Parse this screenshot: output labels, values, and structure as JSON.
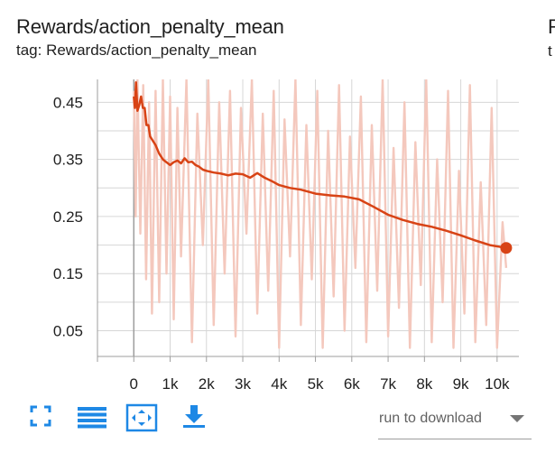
{
  "card": {
    "title": "Rewards/action_penalty_mean",
    "subtitle": "tag: Rewards/action_penalty_mean",
    "next_title_fragment": "R",
    "next_subtitle_fragment": "t"
  },
  "chart_data": {
    "type": "line",
    "xlim": [
      -1000,
      10600
    ],
    "ylim": [
      0.005,
      0.49
    ],
    "x_ticks": [
      0,
      1000,
      2000,
      3000,
      4000,
      5000,
      6000,
      7000,
      8000,
      9000,
      10000
    ],
    "x_tick_labels": [
      "0",
      "1k",
      "2k",
      "3k",
      "4k",
      "5k",
      "6k",
      "7k",
      "8k",
      "9k",
      "10k"
    ],
    "y_ticks": [
      0.05,
      0.15,
      0.25,
      0.35,
      0.45
    ],
    "y_tick_labels": [
      "0.05",
      "0.15",
      "0.25",
      "0.35",
      "0.45"
    ],
    "grid": true,
    "colors": {
      "smoothed": "#d84315",
      "raw": "#f4c8bd",
      "grid": "#d6d6d6"
    },
    "series": [
      {
        "smoothed": true,
        "x": [
          0,
          30,
          60,
          100,
          150,
          200,
          250,
          300,
          350,
          400,
          450,
          500,
          600,
          700,
          800,
          900,
          1000,
          1100,
          1200,
          1300,
          1400,
          1500,
          1600,
          1700,
          1800,
          1900,
          2000,
          2200,
          2400,
          2600,
          2800,
          3000,
          3200,
          3400,
          3600,
          3800,
          4000,
          4300,
          4600,
          5000,
          5400,
          5800,
          6200,
          6600,
          7000,
          7400,
          7800,
          8200,
          8600,
          9000,
          9400,
          9800,
          10250
        ],
        "y": [
          0.46,
          0.44,
          0.485,
          0.435,
          0.445,
          0.46,
          0.44,
          0.44,
          0.41,
          0.41,
          0.39,
          0.385,
          0.375,
          0.36,
          0.35,
          0.345,
          0.34,
          0.345,
          0.348,
          0.343,
          0.352,
          0.345,
          0.346,
          0.34,
          0.337,
          0.332,
          0.33,
          0.327,
          0.325,
          0.322,
          0.325,
          0.324,
          0.318,
          0.326,
          0.318,
          0.312,
          0.305,
          0.3,
          0.297,
          0.29,
          0.287,
          0.285,
          0.28,
          0.267,
          0.253,
          0.244,
          0.237,
          0.232,
          0.225,
          0.217,
          0.208,
          0.2,
          0.195
        ]
      },
      {
        "smoothed": false,
        "x": [
          0,
          50,
          100,
          180,
          260,
          340,
          420,
          500,
          600,
          700,
          800,
          900,
          1000,
          1100,
          1200,
          1300,
          1450,
          1600,
          1750,
          1900,
          2050,
          2200,
          2350,
          2500,
          2650,
          2800,
          2950,
          3100,
          3250,
          3400,
          3550,
          3700,
          3850,
          4000,
          4150,
          4300,
          4450,
          4600,
          4750,
          4900,
          5050,
          5200,
          5350,
          5500,
          5650,
          5800,
          5950,
          6100,
          6250,
          6400,
          6550,
          6700,
          6850,
          7000,
          7150,
          7300,
          7450,
          7600,
          7750,
          7900,
          8050,
          8200,
          8350,
          8500,
          8650,
          8800,
          8950,
          9100,
          9250,
          9400,
          9550,
          9700,
          9850,
          10000,
          10150,
          10250
        ],
        "y": [
          0.47,
          0.25,
          0.49,
          0.22,
          0.48,
          0.14,
          0.45,
          0.08,
          0.47,
          0.1,
          0.49,
          0.15,
          0.46,
          0.07,
          0.44,
          0.18,
          0.49,
          0.03,
          0.43,
          0.2,
          0.49,
          0.06,
          0.45,
          0.15,
          0.47,
          0.04,
          0.44,
          0.22,
          0.49,
          0.08,
          0.43,
          0.12,
          0.47,
          0.02,
          0.42,
          0.18,
          0.49,
          0.06,
          0.41,
          0.14,
          0.47,
          0.02,
          0.4,
          0.11,
          0.48,
          0.05,
          0.39,
          0.16,
          0.46,
          0.03,
          0.41,
          0.12,
          0.49,
          0.04,
          0.37,
          0.09,
          0.45,
          0.02,
          0.38,
          0.13,
          0.49,
          0.03,
          0.35,
          0.1,
          0.47,
          0.02,
          0.33,
          0.08,
          0.48,
          0.03,
          0.31,
          0.06,
          0.44,
          0.02,
          0.24,
          0.16
        ]
      }
    ]
  },
  "toolbar": {
    "fullscreen_icon": "expand-icon",
    "legend_icon": "list-lines-icon",
    "fit_icon": "fit-domain-icon",
    "download_icon": "download-arrow-icon",
    "icon_color": "#1e88e5"
  },
  "download": {
    "label": "run to download"
  }
}
